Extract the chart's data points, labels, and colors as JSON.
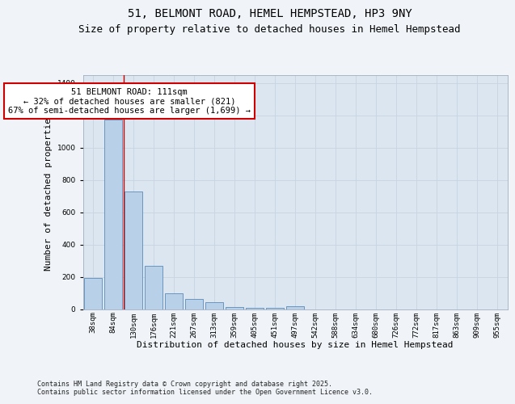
{
  "title1": "51, BELMONT ROAD, HEMEL HEMPSTEAD, HP3 9NY",
  "title2": "Size of property relative to detached houses in Hemel Hempstead",
  "xlabel": "Distribution of detached houses by size in Hemel Hempstead",
  "ylabel": "Number of detached properties",
  "categories": [
    "38sqm",
    "84sqm",
    "130sqm",
    "176sqm",
    "221sqm",
    "267sqm",
    "313sqm",
    "359sqm",
    "405sqm",
    "451sqm",
    "497sqm",
    "542sqm",
    "588sqm",
    "634sqm",
    "680sqm",
    "726sqm",
    "772sqm",
    "817sqm",
    "863sqm",
    "909sqm",
    "955sqm"
  ],
  "values": [
    195,
    1175,
    730,
    270,
    100,
    65,
    45,
    15,
    10,
    10,
    20,
    0,
    0,
    0,
    0,
    0,
    0,
    0,
    0,
    0,
    0
  ],
  "bar_color": "#b8d0e8",
  "bar_edge_color": "#5a8ab8",
  "grid_color": "#c8d4e4",
  "bg_color": "#dce6f0",
  "fig_bg_color": "#f0f4f8",
  "annotation_text": "51 BELMONT ROAD: 111sqm\n← 32% of detached houses are smaller (821)\n67% of semi-detached houses are larger (1,699) →",
  "annotation_box_color": "#ffffff",
  "annotation_border_color": "#cc0000",
  "vline_color": "#cc0000",
  "vline_x_idx": 1.5,
  "ylim": [
    0,
    1450
  ],
  "yticks": [
    0,
    200,
    400,
    600,
    800,
    1000,
    1200,
    1400
  ],
  "footer": "Contains HM Land Registry data © Crown copyright and database right 2025.\nContains public sector information licensed under the Open Government Licence v3.0.",
  "title1_fontsize": 10,
  "title2_fontsize": 9,
  "xlabel_fontsize": 8,
  "ylabel_fontsize": 8,
  "tick_fontsize": 6.5,
  "annotation_fontsize": 7.5,
  "footer_fontsize": 6
}
